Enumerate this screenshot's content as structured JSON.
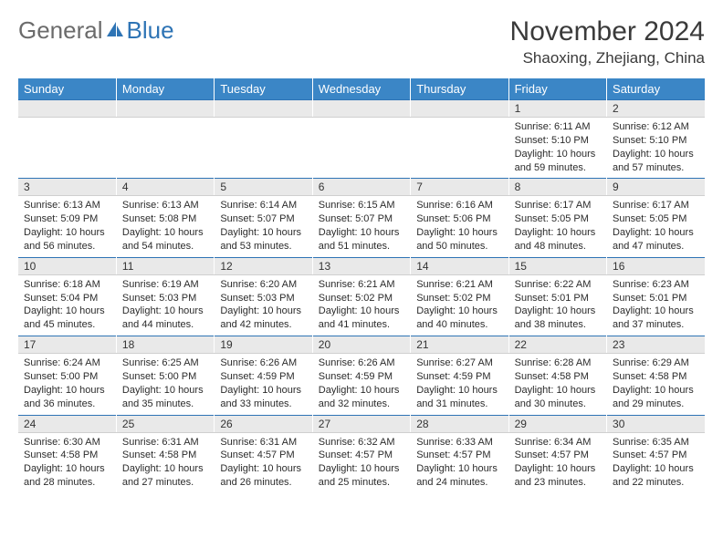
{
  "brand": {
    "part1": "General",
    "part2": "Blue"
  },
  "title": "November 2024",
  "location": "Shaoxing, Zhejiang, China",
  "colors": {
    "header_bg": "#3b86c6",
    "header_text": "#ffffff",
    "daynum_bg": "#e9e9e9",
    "daynum_border_top": "#2e74b5",
    "body_text": "#2b2b2b",
    "brand_gray": "#6b6b6b",
    "brand_blue": "#2e74b5"
  },
  "weekdays": [
    "Sunday",
    "Monday",
    "Tuesday",
    "Wednesday",
    "Thursday",
    "Friday",
    "Saturday"
  ],
  "weeks": [
    [
      null,
      null,
      null,
      null,
      null,
      {
        "n": "1",
        "sr": "6:11 AM",
        "ss": "5:10 PM",
        "dl": "10 hours and 59 minutes."
      },
      {
        "n": "2",
        "sr": "6:12 AM",
        "ss": "5:10 PM",
        "dl": "10 hours and 57 minutes."
      }
    ],
    [
      {
        "n": "3",
        "sr": "6:13 AM",
        "ss": "5:09 PM",
        "dl": "10 hours and 56 minutes."
      },
      {
        "n": "4",
        "sr": "6:13 AM",
        "ss": "5:08 PM",
        "dl": "10 hours and 54 minutes."
      },
      {
        "n": "5",
        "sr": "6:14 AM",
        "ss": "5:07 PM",
        "dl": "10 hours and 53 minutes."
      },
      {
        "n": "6",
        "sr": "6:15 AM",
        "ss": "5:07 PM",
        "dl": "10 hours and 51 minutes."
      },
      {
        "n": "7",
        "sr": "6:16 AM",
        "ss": "5:06 PM",
        "dl": "10 hours and 50 minutes."
      },
      {
        "n": "8",
        "sr": "6:17 AM",
        "ss": "5:05 PM",
        "dl": "10 hours and 48 minutes."
      },
      {
        "n": "9",
        "sr": "6:17 AM",
        "ss": "5:05 PM",
        "dl": "10 hours and 47 minutes."
      }
    ],
    [
      {
        "n": "10",
        "sr": "6:18 AM",
        "ss": "5:04 PM",
        "dl": "10 hours and 45 minutes."
      },
      {
        "n": "11",
        "sr": "6:19 AM",
        "ss": "5:03 PM",
        "dl": "10 hours and 44 minutes."
      },
      {
        "n": "12",
        "sr": "6:20 AM",
        "ss": "5:03 PM",
        "dl": "10 hours and 42 minutes."
      },
      {
        "n": "13",
        "sr": "6:21 AM",
        "ss": "5:02 PM",
        "dl": "10 hours and 41 minutes."
      },
      {
        "n": "14",
        "sr": "6:21 AM",
        "ss": "5:02 PM",
        "dl": "10 hours and 40 minutes."
      },
      {
        "n": "15",
        "sr": "6:22 AM",
        "ss": "5:01 PM",
        "dl": "10 hours and 38 minutes."
      },
      {
        "n": "16",
        "sr": "6:23 AM",
        "ss": "5:01 PM",
        "dl": "10 hours and 37 minutes."
      }
    ],
    [
      {
        "n": "17",
        "sr": "6:24 AM",
        "ss": "5:00 PM",
        "dl": "10 hours and 36 minutes."
      },
      {
        "n": "18",
        "sr": "6:25 AM",
        "ss": "5:00 PM",
        "dl": "10 hours and 35 minutes."
      },
      {
        "n": "19",
        "sr": "6:26 AM",
        "ss": "4:59 PM",
        "dl": "10 hours and 33 minutes."
      },
      {
        "n": "20",
        "sr": "6:26 AM",
        "ss": "4:59 PM",
        "dl": "10 hours and 32 minutes."
      },
      {
        "n": "21",
        "sr": "6:27 AM",
        "ss": "4:59 PM",
        "dl": "10 hours and 31 minutes."
      },
      {
        "n": "22",
        "sr": "6:28 AM",
        "ss": "4:58 PM",
        "dl": "10 hours and 30 minutes."
      },
      {
        "n": "23",
        "sr": "6:29 AM",
        "ss": "4:58 PM",
        "dl": "10 hours and 29 minutes."
      }
    ],
    [
      {
        "n": "24",
        "sr": "6:30 AM",
        "ss": "4:58 PM",
        "dl": "10 hours and 28 minutes."
      },
      {
        "n": "25",
        "sr": "6:31 AM",
        "ss": "4:58 PM",
        "dl": "10 hours and 27 minutes."
      },
      {
        "n": "26",
        "sr": "6:31 AM",
        "ss": "4:57 PM",
        "dl": "10 hours and 26 minutes."
      },
      {
        "n": "27",
        "sr": "6:32 AM",
        "ss": "4:57 PM",
        "dl": "10 hours and 25 minutes."
      },
      {
        "n": "28",
        "sr": "6:33 AM",
        "ss": "4:57 PM",
        "dl": "10 hours and 24 minutes."
      },
      {
        "n": "29",
        "sr": "6:34 AM",
        "ss": "4:57 PM",
        "dl": "10 hours and 23 minutes."
      },
      {
        "n": "30",
        "sr": "6:35 AM",
        "ss": "4:57 PM",
        "dl": "10 hours and 22 minutes."
      }
    ]
  ],
  "labels": {
    "sunrise": "Sunrise:",
    "sunset": "Sunset:",
    "daylight": "Daylight:"
  }
}
